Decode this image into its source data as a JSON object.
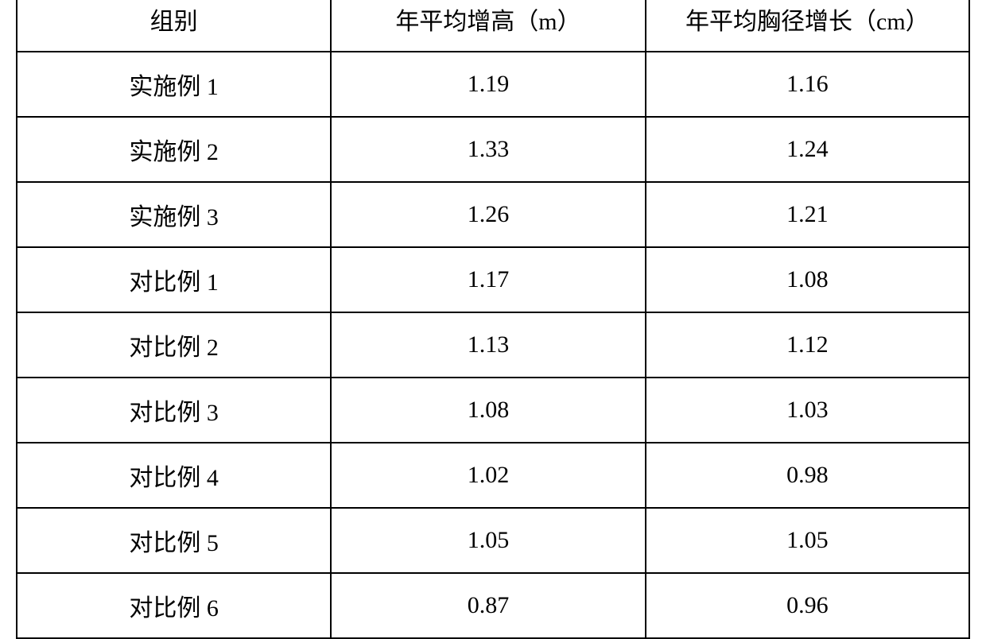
{
  "table": {
    "type": "table",
    "columns": [
      {
        "label": "组别",
        "width": "33%",
        "align": "center"
      },
      {
        "label": "年平均增高（m）",
        "width": "33%",
        "align": "center"
      },
      {
        "label": "年平均胸径增长（cm）",
        "width": "34%",
        "align": "center"
      }
    ],
    "rows": [
      [
        "实施例 1",
        "1.19",
        "1.16"
      ],
      [
        "实施例 2",
        "1.33",
        "1.24"
      ],
      [
        "实施例 3",
        "1.26",
        "1.21"
      ],
      [
        "对比例 1",
        "1.17",
        "1.08"
      ],
      [
        "对比例 2",
        "1.13",
        "1.12"
      ],
      [
        "对比例 3",
        "1.08",
        "1.03"
      ],
      [
        "对比例 4",
        "1.02",
        "0.98"
      ],
      [
        "对比例 5",
        "1.05",
        "1.05"
      ],
      [
        "对比例 6",
        "0.87",
        "0.96"
      ]
    ],
    "border_color": "#000000",
    "border_width": 2,
    "background_color": "#ffffff",
    "text_color": "#000000",
    "font_size": 30,
    "font_family": "SimSun",
    "cell_padding": "18px 10px"
  }
}
